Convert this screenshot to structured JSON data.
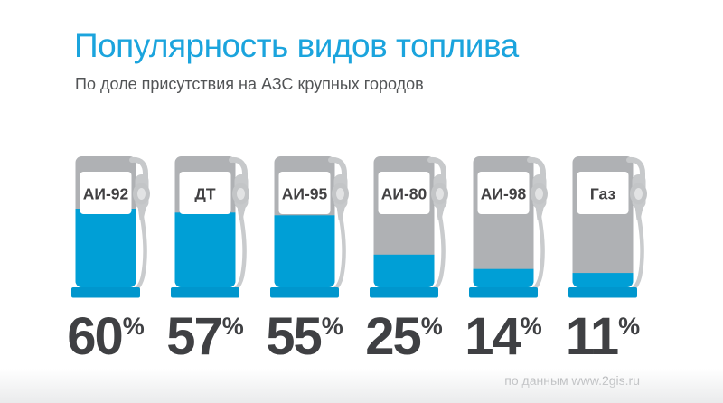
{
  "header": {
    "title": "Популярность видов топлива",
    "subtitle": "По доле присутствия на АЗС крупных городов"
  },
  "attribution": "по данным www.2gis.ru",
  "colors": {
    "title_blue": "#1BA4DD",
    "pump_fill_blue": "#009FD6",
    "pump_base_blue": "#0096CD",
    "pump_gray": "#AFB1B4",
    "nozzle_gray": "#C7C9CB",
    "text_dark": "#414042",
    "subtitle_gray": "#525456",
    "attribution_gray": "#A8AAAD"
  },
  "chart_data": {
    "type": "bar",
    "title": "Популярность видов топлива",
    "subtitle": "По доле присутствия на АЗС крупных городов",
    "categories": [
      "АИ-92",
      "ДТ",
      "АИ-95",
      "АИ-80",
      "АИ-98",
      "Газ"
    ],
    "values": [
      60,
      57,
      55,
      25,
      14,
      11
    ],
    "unit": "%",
    "ylim": [
      0,
      100
    ],
    "representation": "fuel-pump pictograms, blue fill height = value",
    "source": "по данным www.2gis.ru"
  }
}
